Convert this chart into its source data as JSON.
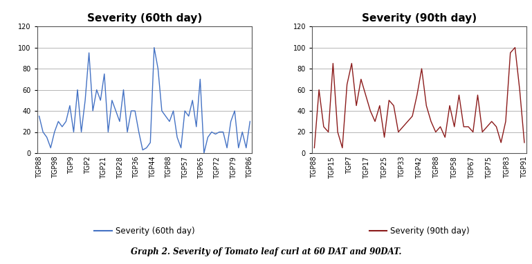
{
  "title_60": "Severity (60th day)",
  "title_90": "Severity (90th day)",
  "legend_60": "Severity (60th day)",
  "legend_90": "Severity (90th day)",
  "caption": "Graph 2. Severity of Tomato leaf curl at 60 DAT and 90DAT.",
  "color_60": "#4472C4",
  "color_90": "#8B1A1A",
  "ylim": [
    0,
    120
  ],
  "yticks": [
    0,
    20,
    40,
    60,
    80,
    100,
    120
  ],
  "labels_60": [
    "TGP88",
    "TGP98",
    "TGP9",
    "TGP2",
    "TGP21",
    "TGP28",
    "TGP36",
    "TGP44",
    "TGP88",
    "TGP57",
    "TGP65",
    "TGP72",
    "TGP79",
    "TGP86"
  ],
  "values_60": [
    35,
    20,
    15,
    5,
    20,
    30,
    25,
    30,
    45,
    20,
    60,
    20,
    50,
    95,
    40,
    60,
    50,
    75,
    20,
    50,
    40,
    30,
    60,
    20,
    40,
    40,
    20,
    3,
    5,
    10,
    100,
    80,
    40,
    35,
    30,
    40,
    15,
    5,
    40,
    35,
    50,
    25,
    70,
    0,
    15,
    20,
    18,
    20,
    20,
    5,
    30,
    40,
    5,
    20,
    5,
    30
  ],
  "labels_90": [
    "TGP88",
    "TGP15",
    "TGP7",
    "TGP17",
    "TGP25",
    "TGP33",
    "TGP42",
    "TGP88",
    "TGP58",
    "TGP67",
    "TGP75",
    "TGP83",
    "TGP91"
  ],
  "values_90": [
    5,
    60,
    25,
    20,
    85,
    20,
    5,
    65,
    85,
    45,
    70,
    55,
    40,
    30,
    45,
    15,
    50,
    45,
    20,
    25,
    30,
    35,
    55,
    80,
    45,
    30,
    20,
    25,
    15,
    45,
    25,
    55,
    25,
    25,
    20,
    55,
    20,
    25,
    30,
    25,
    10,
    30,
    95,
    100,
    60,
    10
  ],
  "background_color": "#ffffff",
  "grid_color": "#aaaaaa",
  "title_fontsize": 11,
  "tick_fontsize": 7,
  "legend_fontsize": 8.5,
  "caption_fontsize": 8.5
}
